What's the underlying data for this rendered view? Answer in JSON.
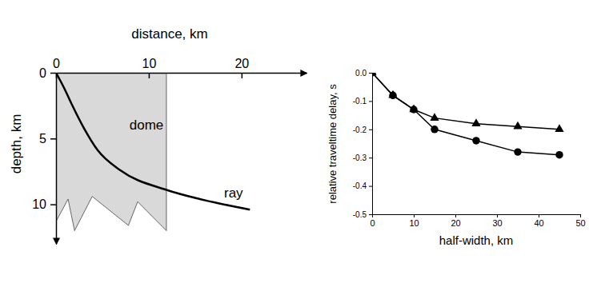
{
  "chart_data": [
    {
      "type": "line",
      "xlabel": "distance, km",
      "ylabel": "depth, km",
      "xlim": [
        0,
        27
      ],
      "ylim": [
        0,
        13
      ],
      "xticks": [
        0,
        10,
        20
      ],
      "yticks": [
        0,
        5,
        10
      ],
      "series": [
        {
          "name": "dome",
          "type": "area",
          "color": "#d9d9d9",
          "x": [
            0,
            0,
            1.3,
            2,
            3.9,
            7.8,
            8.8,
            11.9,
            11.9
          ],
          "values": [
            0,
            11.3,
            9.6,
            12,
            9.4,
            11.6,
            9.8,
            12,
            0
          ]
        },
        {
          "name": "ray",
          "type": "line",
          "color": "#000000",
          "x": [
            0,
            0.9,
            1.7,
            3.0,
            4.5,
            6.9,
            11.9,
            15.5,
            20.9
          ],
          "values": [
            0,
            1.2,
            2.4,
            4.2,
            5.9,
            7.4,
            8.9,
            9.6,
            10.4
          ]
        }
      ]
    },
    {
      "type": "line",
      "xlabel": "half-width, km",
      "ylabel": "relative traveltime delay, s",
      "xlim": [
        0,
        50
      ],
      "ylim": [
        -0.5,
        0
      ],
      "xticks": [
        0,
        10,
        20,
        30,
        40,
        50
      ],
      "yticks": [
        {
          "value": 0,
          "label": "0.0"
        },
        -0.1,
        -0.2,
        -0.3,
        -0.4,
        -0.5
      ],
      "x": [
        0,
        5,
        10,
        15,
        25,
        35,
        45
      ],
      "series": [
        {
          "color": "#000000",
          "marker": "triangle",
          "values": [
            0,
            -0.08,
            -0.13,
            -0.16,
            -0.18,
            -0.19,
            -0.2
          ]
        },
        {
          "color": "#000000",
          "marker": "circle",
          "values": [
            0,
            -0.08,
            -0.13,
            -0.2,
            -0.24,
            -0.28,
            -0.29
          ]
        }
      ]
    }
  ]
}
